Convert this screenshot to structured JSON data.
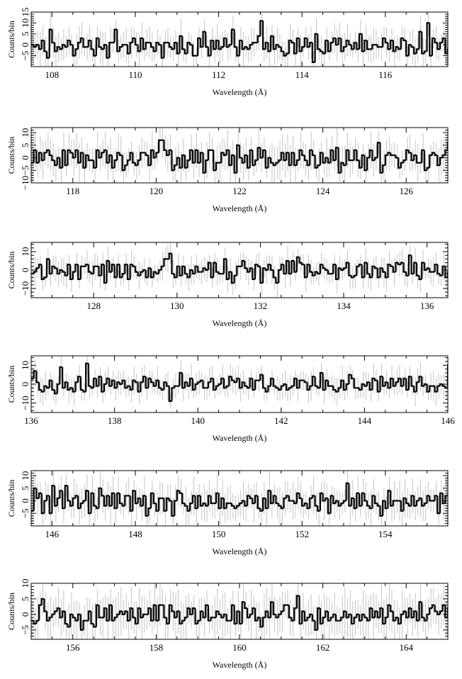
{
  "chart_data": [
    {
      "type": "line",
      "xlabel": "Wavelength (Å)",
      "ylabel": "Counts/bin",
      "xlim": [
        107.5,
        117.5
      ],
      "ylim": [
        -10,
        15
      ],
      "x_ticks": [
        108,
        110,
        112,
        114,
        116
      ],
      "y_ticks": [
        -5,
        0,
        5,
        10,
        15
      ],
      "y_tick_labels": [
        "−5",
        "0",
        "5",
        "10",
        "15"
      ],
      "grid": false,
      "bin_width": 0.0625,
      "values": [
        0,
        -1,
        0,
        -2,
        2,
        -3,
        -6,
        7,
        1,
        -3,
        -1,
        -2,
        0,
        -1,
        2,
        0,
        -5,
        -2,
        1,
        3,
        -1,
        -1,
        2,
        -2,
        -5,
        3,
        -1,
        -2,
        0,
        -6,
        1,
        1,
        7,
        -3,
        -1,
        0,
        0,
        -4,
        1,
        3,
        0,
        -3,
        3,
        -2,
        1,
        1,
        -1,
        -3,
        1,
        0,
        -6,
        1,
        1,
        -1,
        -2,
        1,
        -4,
        4,
        -2,
        -4,
        1,
        0,
        -5,
        -5,
        3,
        -1,
        6,
        -1,
        -5,
        2,
        -2,
        2,
        -2,
        -1,
        3,
        -1,
        0,
        7,
        -1,
        -5,
        2,
        -2,
        -1,
        -2,
        0,
        1,
        1,
        4,
        11,
        -2,
        1,
        -3,
        4,
        -2,
        0,
        -1,
        -3,
        -5,
        -4,
        2,
        1,
        -4,
        3,
        -3,
        -1,
        3,
        -1,
        1,
        -8,
        5,
        -2,
        -3,
        -4,
        2,
        -3,
        1,
        3,
        0,
        3,
        -3,
        -1,
        2,
        0,
        -2,
        1,
        -2,
        5,
        -3,
        2,
        -2,
        -2,
        0,
        0,
        -1,
        -1,
        3,
        1,
        -2,
        2,
        -3,
        -1,
        -2,
        3,
        2,
        -5,
        0,
        -1,
        -4,
        -2,
        6,
        -4,
        -3,
        10,
        -5,
        3,
        1,
        -2,
        1,
        3,
        -4,
        -2,
        3,
        -3,
        -1,
        3,
        -2,
        -3,
        -4,
        -3,
        0,
        -1,
        0,
        1,
        -2,
        -3,
        4,
        -1,
        -2,
        1,
        -3,
        0,
        -1,
        3,
        3,
        -2,
        -1,
        -5,
        -3,
        3,
        -4,
        2,
        -1,
        -1,
        6,
        -2,
        2,
        1,
        0,
        -3,
        -2,
        9,
        3,
        4,
        -1,
        -2,
        0,
        5,
        -4,
        4,
        2,
        2,
        -1,
        1,
        -5,
        -1,
        -2,
        4,
        -1,
        1,
        1,
        -3,
        1,
        3,
        -3,
        4
      ]
    },
    {
      "type": "line",
      "xlabel": "Wavelength (Å)",
      "ylabel": "Counts/bin",
      "xlim": [
        117,
        127
      ],
      "ylim": [
        -10,
        12
      ],
      "x_ticks": [
        118,
        120,
        122,
        124,
        126
      ],
      "y_ticks": [
        -10,
        -5,
        0,
        5,
        10
      ],
      "y_tick_labels": [
        "−10",
        "−5",
        "0",
        "5",
        "10"
      ],
      "grid": false,
      "bin_width": 0.0625,
      "values": [
        -2,
        3,
        -2,
        2,
        -1,
        2,
        3,
        1,
        -1,
        -3,
        0,
        -4,
        3,
        -3,
        3,
        2,
        0,
        3,
        -2,
        2,
        -4,
        1,
        -1,
        -1,
        -4,
        3,
        0,
        2,
        3,
        -2,
        1,
        -4,
        -1,
        2,
        1,
        -5,
        -3,
        -1,
        2,
        -2,
        -3,
        -1,
        2,
        2,
        1,
        -3,
        3,
        0,
        2,
        7,
        7,
        3,
        1,
        3,
        -5,
        -3,
        0,
        -4,
        1,
        -4,
        -1,
        3,
        -2,
        3,
        -2,
        2,
        -6,
        -1,
        3,
        3,
        -5,
        -2,
        -2,
        2,
        1,
        3,
        -3,
        1,
        -6,
        5,
        0,
        -2,
        1,
        -4,
        3,
        -3,
        -1,
        4,
        0,
        3,
        -4,
        0,
        -2,
        -3,
        -2,
        -1,
        2,
        -1,
        2,
        -3,
        2,
        -3,
        -1,
        3,
        1,
        -1,
        -3,
        3,
        1,
        -4,
        -3,
        2,
        -2,
        0,
        -2,
        3,
        -1,
        4,
        -6,
        -2,
        -3,
        3,
        -1,
        -1,
        3,
        -1,
        -4,
        1,
        -5,
        0,
        3,
        -1,
        0,
        6,
        -6,
        -3,
        1,
        2,
        1,
        1,
        0,
        -4,
        -2,
        -1,
        3,
        2,
        -1,
        1,
        -2,
        -2,
        3,
        -5,
        -4,
        1,
        2,
        1,
        -3,
        0,
        1,
        3,
        6,
        -3,
        -1,
        4,
        -2,
        -5,
        -4,
        2,
        -1,
        -2,
        -1,
        2,
        1,
        0,
        -1,
        -3,
        0,
        -6,
        2,
        1,
        -1,
        2,
        -3,
        -2,
        1,
        -2,
        -4,
        -8,
        2,
        1,
        -1,
        5,
        3,
        6,
        1,
        -3,
        0,
        -4,
        -1,
        4,
        1,
        -1,
        -3,
        1,
        -5,
        -2,
        2,
        3,
        4,
        -1,
        -3,
        -3,
        4,
        2,
        -4,
        -2,
        1,
        -3,
        -1,
        3,
        4,
        3,
        -3,
        2,
        -2,
        6,
        3,
        0,
        -5,
        -1,
        2,
        0
      ]
    },
    {
      "type": "line",
      "xlabel": "Wavelength (Å)",
      "ylabel": "Counts/bin",
      "xlim": [
        126.5,
        136.5
      ],
      "ylim": [
        -15,
        15
      ],
      "x_ticks": [
        128,
        130,
        132,
        134,
        136
      ],
      "y_ticks": [
        -10,
        0,
        10
      ],
      "y_tick_labels": [
        "−10",
        "0",
        "10"
      ],
      "grid": false,
      "bin_width": 0.0625,
      "values": [
        -2,
        -1,
        1,
        3,
        -5,
        -4,
        6,
        -2,
        2,
        1,
        -2,
        0,
        -1,
        -3,
        3,
        -5,
        -1,
        3,
        -5,
        2,
        2,
        3,
        -1,
        -2,
        2,
        2,
        -3,
        3,
        -7,
        5,
        -1,
        3,
        -4,
        3,
        -4,
        -2,
        3,
        -5,
        3,
        2,
        -1,
        -3,
        -1,
        0,
        -4,
        1,
        -4,
        -1,
        -2,
        0,
        2,
        6,
        6,
        9,
        -2,
        -4,
        2,
        -3,
        2,
        -2,
        -4,
        0,
        -2,
        2,
        -1,
        -1,
        1,
        0,
        4,
        -4,
        4,
        -1,
        -2,
        -2,
        6,
        -5,
        -1,
        -7,
        -3,
        2,
        2,
        5,
        1,
        -1,
        1,
        -5,
        3,
        2,
        -7,
        1,
        0,
        3,
        0,
        -4,
        -7,
        0,
        3,
        -2,
        5,
        -2,
        5,
        -1,
        7,
        4,
        3,
        -4,
        3,
        -1,
        -3,
        -1,
        -2,
        3,
        1,
        0,
        -2,
        -2,
        3,
        -5,
        1,
        0,
        1,
        4,
        -3,
        -4,
        -3,
        2,
        3,
        -4,
        4,
        -2,
        -4,
        2,
        1,
        -4,
        1,
        -1,
        -4,
        3,
        2,
        -1,
        4,
        3,
        4,
        -1,
        -3,
        8,
        -2,
        4,
        -3,
        -5,
        4,
        0,
        1,
        -1,
        -1,
        3,
        -2,
        -3,
        2,
        -4,
        -1,
        2,
        -2,
        -1,
        -4,
        -2,
        1,
        -3,
        -1,
        -2,
        -1,
        -1,
        -2,
        2,
        -4,
        5,
        -2,
        -1,
        1,
        3,
        2,
        -5,
        6,
        6,
        -3,
        -2,
        -3,
        1,
        0,
        -1,
        3,
        4,
        -5,
        -2,
        3,
        -3,
        -1,
        1,
        1,
        -1,
        -3,
        1,
        1,
        2,
        2,
        3,
        1,
        1,
        -2,
        -3,
        0,
        2,
        -5,
        -4,
        3,
        1,
        -3,
        -1,
        0,
        3,
        0,
        -1,
        2,
        -2,
        3,
        -3,
        4,
        2,
        -2,
        1,
        -3,
        -4,
        2,
        9,
        -3,
        2
      ]
    },
    {
      "type": "line",
      "xlabel": "Wavelength (Å)",
      "ylabel": "Counts/bin",
      "xlim": [
        136,
        146
      ],
      "ylim": [
        -15,
        15
      ],
      "x_ticks": [
        136,
        138,
        140,
        142,
        144,
        146
      ],
      "y_ticks": [
        -10,
        0,
        10
      ],
      "y_tick_labels": [
        "−10",
        "0",
        "10"
      ],
      "grid": false,
      "bin_width": 0.0625,
      "values": [
        3,
        7,
        1,
        -3,
        -4,
        -1,
        -2,
        2,
        -3,
        -5,
        0,
        9,
        -2,
        1,
        -3,
        -2,
        -4,
        1,
        4,
        -3,
        -4,
        11,
        -1,
        -2,
        3,
        -1,
        4,
        -4,
        0,
        3,
        -1,
        2,
        -2,
        1,
        0,
        2,
        -2,
        -1,
        -3,
        2,
        1,
        -4,
        1,
        4,
        -2,
        3,
        1,
        -1,
        2,
        -2,
        -3,
        1,
        -1,
        -9,
        -2,
        -1,
        -1,
        6,
        -2,
        1,
        -1,
        3,
        -3,
        0,
        1,
        2,
        -2,
        -2,
        1,
        3,
        -3,
        -1,
        0,
        3,
        -2,
        -1,
        4,
        2,
        1,
        3,
        -2,
        1,
        -1,
        -2,
        3,
        -3,
        2,
        2,
        5,
        -2,
        -4,
        -1,
        3,
        -1,
        -2,
        -3,
        -1,
        0,
        -3,
        -2,
        -1,
        3,
        -2,
        2,
        2,
        1,
        -3,
        -1,
        4,
        -1,
        -2,
        6,
        -3,
        2,
        -1,
        -1,
        -3,
        -4,
        -2,
        2,
        -3,
        0,
        5,
        3,
        -2,
        -2,
        -3,
        0,
        -1,
        1,
        -3,
        3,
        2,
        -4,
        4,
        -1,
        1,
        -2,
        3,
        -1,
        1,
        3,
        -1,
        3,
        -3,
        4,
        -1,
        -4,
        1,
        4,
        -1,
        0,
        -4,
        -1,
        -1,
        -4,
        -1,
        0,
        -1,
        -2,
        10,
        -4,
        -1,
        -4,
        1,
        0,
        0,
        -7,
        -3,
        -1,
        4,
        1,
        0,
        -4,
        -2,
        -3,
        4,
        5,
        3,
        -4,
        1,
        2,
        -3,
        -3,
        1,
        -4,
        -1,
        3,
        0,
        -3,
        -1,
        -2,
        -1,
        1,
        -2,
        -2,
        -3,
        -4,
        -1,
        1,
        -2,
        -4,
        1,
        -1,
        -2,
        -2,
        1,
        0,
        -4,
        -2,
        0,
        -3,
        -3,
        4,
        -2,
        3,
        -3,
        2,
        2,
        0,
        -1,
        -3,
        1,
        1,
        3,
        0,
        -3,
        4,
        3,
        1,
        -3,
        2,
        -1,
        -1,
        3,
        1,
        -2,
        0,
        1,
        -2,
        -1,
        1
      ]
    },
    {
      "type": "line",
      "xlabel": "Wavelength (Å)",
      "ylabel": "Counts/bin",
      "xlim": [
        145.5,
        155.5
      ],
      "ylim": [
        -10,
        12
      ],
      "x_ticks": [
        146,
        148,
        150,
        152,
        154
      ],
      "y_ticks": [
        -5,
        0,
        5,
        10
      ],
      "y_tick_labels": [
        "−5",
        "0",
        "5",
        "10"
      ],
      "grid": false,
      "bin_width": 0.0625,
      "values": [
        -4,
        5,
        1,
        3,
        -5,
        0,
        2,
        -5,
        6,
        -2,
        1,
        4,
        -3,
        6,
        0,
        -2,
        1,
        2,
        -3,
        -1,
        0,
        4,
        -5,
        3,
        -2,
        -3,
        5,
        2,
        -2,
        2,
        -2,
        3,
        -3,
        3,
        -1,
        -2,
        2,
        2,
        -4,
        4,
        -1,
        1,
        -2,
        2,
        -6,
        -3,
        3,
        -1,
        -4,
        1,
        1,
        -4,
        1,
        0,
        -6,
        0,
        4,
        3,
        -1,
        -2,
        -4,
        -1,
        2,
        -3,
        2,
        -2,
        -1,
        -2,
        2,
        -1,
        -1,
        3,
        -3,
        1,
        -3,
        -1,
        -1,
        -2,
        -3,
        -2,
        -1,
        0,
        -2,
        2,
        1,
        -1,
        2,
        -3,
        -4,
        1,
        -3,
        4,
        -1,
        2,
        -1,
        -2,
        -3,
        1,
        2,
        0,
        0,
        -1,
        3,
        1,
        -2,
        -1,
        -3,
        1,
        2,
        -2,
        -4,
        3,
        0,
        1,
        -5,
        2,
        -1,
        0,
        -2,
        -1,
        0,
        7,
        -2,
        1,
        -3,
        3,
        -2,
        3,
        0,
        -2,
        -3,
        2,
        -1,
        -2,
        -6,
        0,
        -3,
        4,
        -2,
        0,
        0,
        0,
        -4,
        1,
        -1,
        -2,
        2,
        -2,
        0,
        1,
        -2,
        -1,
        2,
        0,
        0,
        2,
        -5,
        3,
        -1,
        2,
        2,
        -4,
        2,
        1,
        0,
        1,
        -1,
        -1,
        -2,
        2,
        -4,
        3,
        -3,
        -6,
        -2,
        4,
        1,
        -3,
        4,
        -2,
        1,
        -4,
        -1,
        3,
        -3,
        0,
        -4,
        5,
        -3,
        1,
        3,
        -2,
        4,
        -5,
        2,
        -1,
        2,
        2,
        3,
        -3,
        -1,
        3,
        1,
        -2,
        2,
        -3,
        4,
        -3,
        1,
        4,
        -1,
        -2,
        1,
        2,
        3,
        -4,
        -5,
        3,
        -3,
        4,
        -1,
        5,
        -3,
        4,
        -2,
        4,
        2,
        -2,
        -1,
        3,
        -3,
        0,
        -1,
        1,
        -1,
        1,
        -1,
        0
      ]
    },
    {
      "type": "line",
      "xlabel": "Wavelength (Å)",
      "ylabel": "Counts/bin",
      "xlim": [
        155,
        165
      ],
      "ylim": [
        -8,
        10
      ],
      "x_ticks": [
        156,
        158,
        160,
        162,
        164
      ],
      "y_ticks": [
        -5,
        0,
        5,
        10
      ],
      "y_tick_labels": [
        "−5",
        "0",
        "5",
        "10"
      ],
      "grid": false,
      "bin_width": 0.0625,
      "values": [
        -2,
        -3,
        -2,
        3,
        5,
        1,
        -2,
        -1,
        0,
        1,
        2,
        -1,
        1,
        -3,
        -4,
        0,
        -1,
        -2,
        0,
        -5,
        -2,
        -2,
        1,
        -3,
        -4,
        3,
        -1,
        -1,
        2,
        -2,
        3,
        -2,
        -1,
        0,
        1,
        0,
        1,
        -2,
        2,
        -1,
        -3,
        2,
        -1,
        0,
        0,
        2,
        -2,
        3,
        -2,
        3,
        3,
        -1,
        -3,
        3,
        1,
        -1,
        1,
        -3,
        -2,
        -1,
        2,
        0,
        2,
        -3,
        -2,
        1,
        -1,
        3,
        -2,
        -1,
        -1,
        1,
        0,
        -1,
        0,
        -2,
        -2,
        3,
        -3,
        1,
        -3,
        4,
        2,
        -1,
        0,
        2,
        -2,
        -1,
        -4,
        -1,
        1,
        -1,
        4,
        0,
        -1,
        0,
        1,
        3,
        3,
        -1,
        -2,
        2,
        6,
        -3,
        1,
        -2,
        -1,
        0,
        -2,
        -5,
        2,
        -3,
        -1,
        1,
        -2,
        -1,
        0,
        -2,
        -2,
        -1,
        1,
        -1,
        0,
        -3,
        -1,
        0,
        -2,
        0,
        -1,
        -2,
        2,
        -1,
        1,
        -1,
        2,
        -3,
        -1,
        3,
        1,
        -2,
        -1,
        -3,
        0,
        1,
        -1,
        2,
        -1,
        1,
        -2,
        4,
        -1,
        -2,
        0,
        2,
        3,
        1,
        0,
        1,
        3,
        -1,
        2,
        -2,
        0,
        -3,
        -1,
        -4,
        3,
        -2,
        0,
        1,
        -2,
        1,
        4,
        -2,
        0,
        2,
        2,
        -2,
        1,
        2,
        2,
        4,
        -1,
        2,
        -4,
        3,
        3,
        -2,
        1,
        -5,
        2,
        -2,
        5,
        -2,
        1,
        2,
        -3,
        2,
        -1,
        -1,
        2,
        -1,
        2,
        -2,
        1,
        -2,
        -2,
        1,
        3,
        -2,
        -1,
        1,
        -2,
        -2,
        3,
        -2,
        -1,
        0,
        2,
        -2,
        1,
        0,
        -3,
        -1,
        2,
        -2,
        2,
        1,
        1,
        -2,
        0,
        1,
        -2,
        5,
        0
      ]
    }
  ]
}
